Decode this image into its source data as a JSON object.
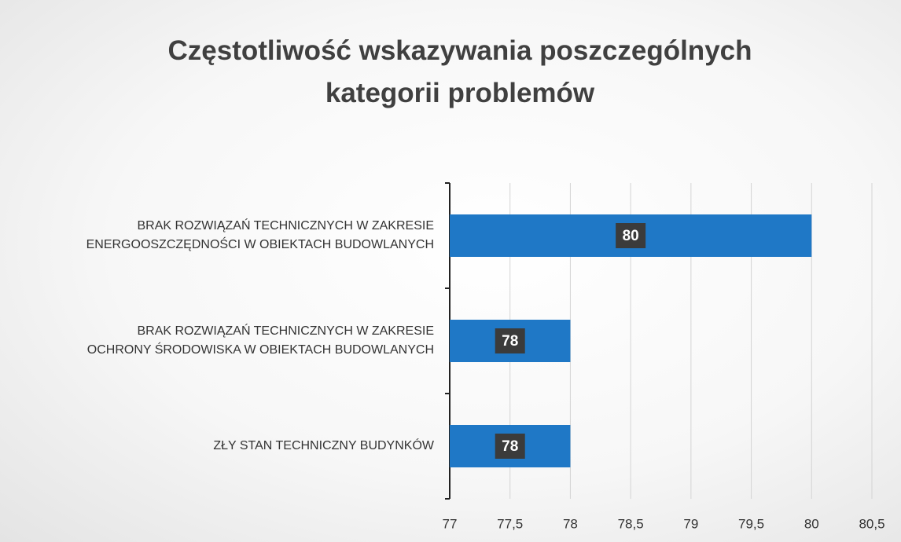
{
  "chart_data": {
    "type": "bar",
    "orientation": "horizontal",
    "title": "Częstotliwość wskazywania poszczególnych\nkategorii problemów",
    "categories": [
      "BRAK ROZWIĄZAŃ TECHNICZNYCH W ZAKRESIE\nENERGOOSZCZĘDNOŚCI W OBIEKTACH BUDOWLANYCH",
      "BRAK ROZWIĄZAŃ TECHNICZNYCH W ZAKRESIE\nOCHRONY ŚRODOWISKA W OBIEKTACH BUDOWLANYCH",
      "ZŁY STAN TECHNICZNY BUDYNKÓW"
    ],
    "values": [
      80,
      78,
      78
    ],
    "color": "#1f78c6",
    "xlim": [
      77,
      80.5
    ],
    "xticks": [
      77,
      {
        "value": 77.5,
        "label": "77,5"
      },
      78,
      {
        "value": 78.5,
        "label": "78,5"
      },
      79,
      {
        "value": 79.5,
        "label": "79,5"
      },
      80,
      {
        "value": 80.5,
        "label": "80,5"
      }
    ],
    "grid": true
  }
}
